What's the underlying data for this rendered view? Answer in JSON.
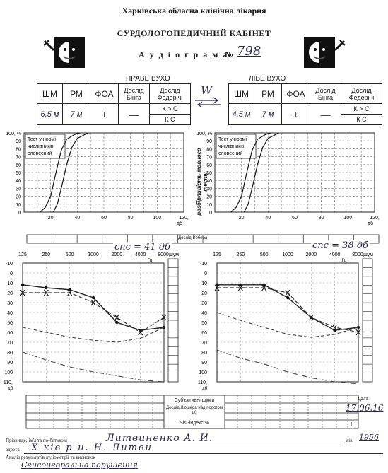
{
  "header": {
    "hospital": "Харківська обласна клінічна лікарня",
    "office": "СУРДОЛОГОПЕДИЧНИЙ КАБІНЕТ",
    "audiogram_label": "А у д і о г р а м а",
    "number_sign": "№",
    "number_value": "798"
  },
  "right_ear": {
    "title": "ПРАВЕ ВУХО",
    "columns": [
      "ШМ",
      "РМ",
      "ФОА",
      "Дослід Бінга",
      "Дослід Федерічі"
    ],
    "values": [
      "6,5 м",
      "7 м",
      "+",
      "—"
    ],
    "federici": [
      "К > С",
      "К   С"
    ]
  },
  "left_ear": {
    "title": "ЛІВЕ ВУХО",
    "columns": [
      "ШМ",
      "РМ",
      "ФОА",
      "Дослід Бінга",
      "Дослід Федерічі"
    ],
    "values": [
      "4,5 м",
      "7 м",
      "+",
      "—"
    ],
    "federici": [
      "К > С",
      "К   С"
    ]
  },
  "arrow_mark": "W",
  "speech": {
    "yticks": [
      "100, %",
      "90",
      "80",
      "70",
      "60",
      "50",
      "40",
      "30",
      "20",
      "10",
      "0"
    ],
    "xticks": [
      "20",
      "40",
      "60",
      "80",
      "100",
      "120,"
    ],
    "xunit": "дб",
    "legend": [
      "Тест у нормі",
      "числівників",
      "словесний"
    ],
    "side_label": "розбірливість мовного тесту"
  },
  "weber": {
    "label": "Дослід Вебера"
  },
  "tone": {
    "freqs": [
      "125",
      "250",
      "500",
      "1000",
      "2000",
      "4000",
      "8000,",
      "шум"
    ],
    "freq_unit": "Гц",
    "db": [
      "-10",
      "0",
      "10",
      "20",
      "30",
      "40",
      "50",
      "60",
      "70",
      "80",
      "90",
      "100",
      "110,"
    ],
    "db_unit": "дб",
    "right_note": "спс = 41 дб",
    "left_note": "спс = 38 дб"
  },
  "chart_data": [
    {
      "type": "line",
      "name": "right-ear tone audiogram",
      "x": [
        125,
        250,
        500,
        1000,
        2000,
        4000,
        8000
      ],
      "series": [
        {
          "values": [
            12,
            15,
            17,
            25,
            50,
            58,
            55
          ]
        },
        {
          "values": [
            20,
            20,
            20,
            30,
            45,
            60,
            45
          ]
        },
        {
          "values": [
            55,
            60,
            65,
            68,
            70,
            66,
            55
          ]
        },
        {
          "values": [
            80,
            88,
            95,
            100,
            104,
            108,
            110
          ]
        }
      ],
      "ylim": [
        -10,
        110
      ]
    },
    {
      "type": "line",
      "name": "left-ear tone audiogram",
      "x": [
        125,
        250,
        500,
        1000,
        2000,
        4000,
        8000
      ],
      "series": [
        {
          "values": [
            12,
            12,
            12,
            25,
            45,
            58,
            55
          ]
        },
        {
          "values": [
            15,
            15,
            15,
            20,
            45,
            55,
            60
          ]
        },
        {
          "values": [
            40,
            48,
            55,
            62,
            65,
            62,
            55
          ]
        },
        {
          "values": [
            78,
            86,
            92,
            100,
            106,
            110,
            112
          ]
        }
      ],
      "ylim": [
        -10,
        110
      ]
    }
  ],
  "bottom_table": {
    "rows": [
      "Суб'єктивні шуми",
      "Дослід Люшера над порогом дб",
      "Sisi-індекс %"
    ]
  },
  "date": {
    "label": "Дата",
    "value": "17.06.16",
    "roman": "II"
  },
  "patient": {
    "name_label": "Прізвище, ім'я та по-батькові",
    "name_value": "Литвиненко А. И.",
    "age_label": "вік",
    "age_value": "1956",
    "address_label": "адреса",
    "address_value": "Х-ків  р-н. Н. Литви",
    "analysis_label": "Аналіз результатів аудіометрії та висновок",
    "analysis_value": "Сенсоневральна порушення"
  }
}
